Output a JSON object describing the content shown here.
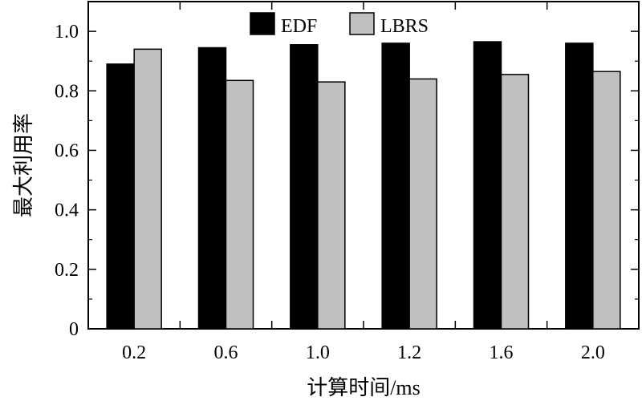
{
  "chart_data": {
    "type": "bar",
    "categories": [
      "0.2",
      "0.6",
      "1.0",
      "1.2",
      "1.6",
      "2.0"
    ],
    "series": [
      {
        "name": "EDF",
        "color": "#000000",
        "values": [
          0.89,
          0.945,
          0.955,
          0.96,
          0.965,
          0.96
        ]
      },
      {
        "name": "LBRS",
        "color": "#c0c0c0",
        "values": [
          0.94,
          0.835,
          0.83,
          0.84,
          0.855,
          0.865
        ]
      }
    ],
    "xlabel": "计算时间/ms",
    "ylabel": "最大利用率",
    "ylim": [
      0,
      1.1
    ],
    "yticks": [
      "0",
      "0.2",
      "0.4",
      "0.6",
      "0.8",
      "1.0"
    ],
    "legend_position": "top",
    "grid": false
  }
}
